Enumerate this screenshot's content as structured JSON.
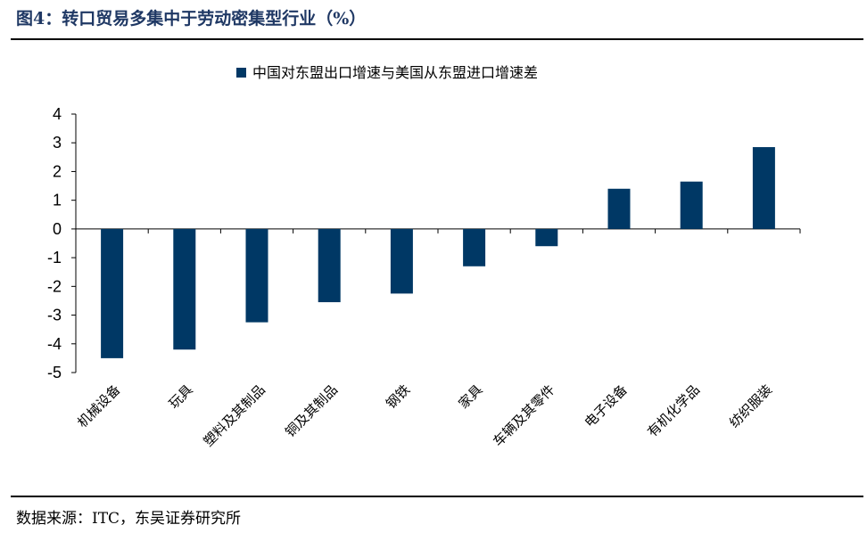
{
  "header": {
    "title": "图4：转口贸易多集中于劳动密集型行业（%）"
  },
  "footer": {
    "source": "数据来源：ITC，东吴证券研究所"
  },
  "colors": {
    "bar": "#003865",
    "axis": "#000000"
  },
  "chart_data": {
    "type": "bar",
    "title": "",
    "xlabel": "",
    "ylabel": "",
    "ylim": [
      -5,
      4
    ],
    "yticks": [
      4,
      3,
      2,
      1,
      0,
      -1,
      -2,
      -3,
      -4,
      -5
    ],
    "grid": false,
    "legend_position": "top-center",
    "categories": [
      "机械设备",
      "玩具",
      "塑料及其制品",
      "铜及其制品",
      "钢铁",
      "家具",
      "车辆及其零件",
      "电子设备",
      "有机化学品",
      "纺织服装"
    ],
    "series": [
      {
        "name": "中国对东盟出口增速与美国从东盟进口增速差",
        "values": [
          -4.5,
          -4.2,
          -3.25,
          -2.55,
          -2.25,
          -1.3,
          -0.6,
          1.4,
          1.65,
          2.85
        ]
      }
    ]
  }
}
